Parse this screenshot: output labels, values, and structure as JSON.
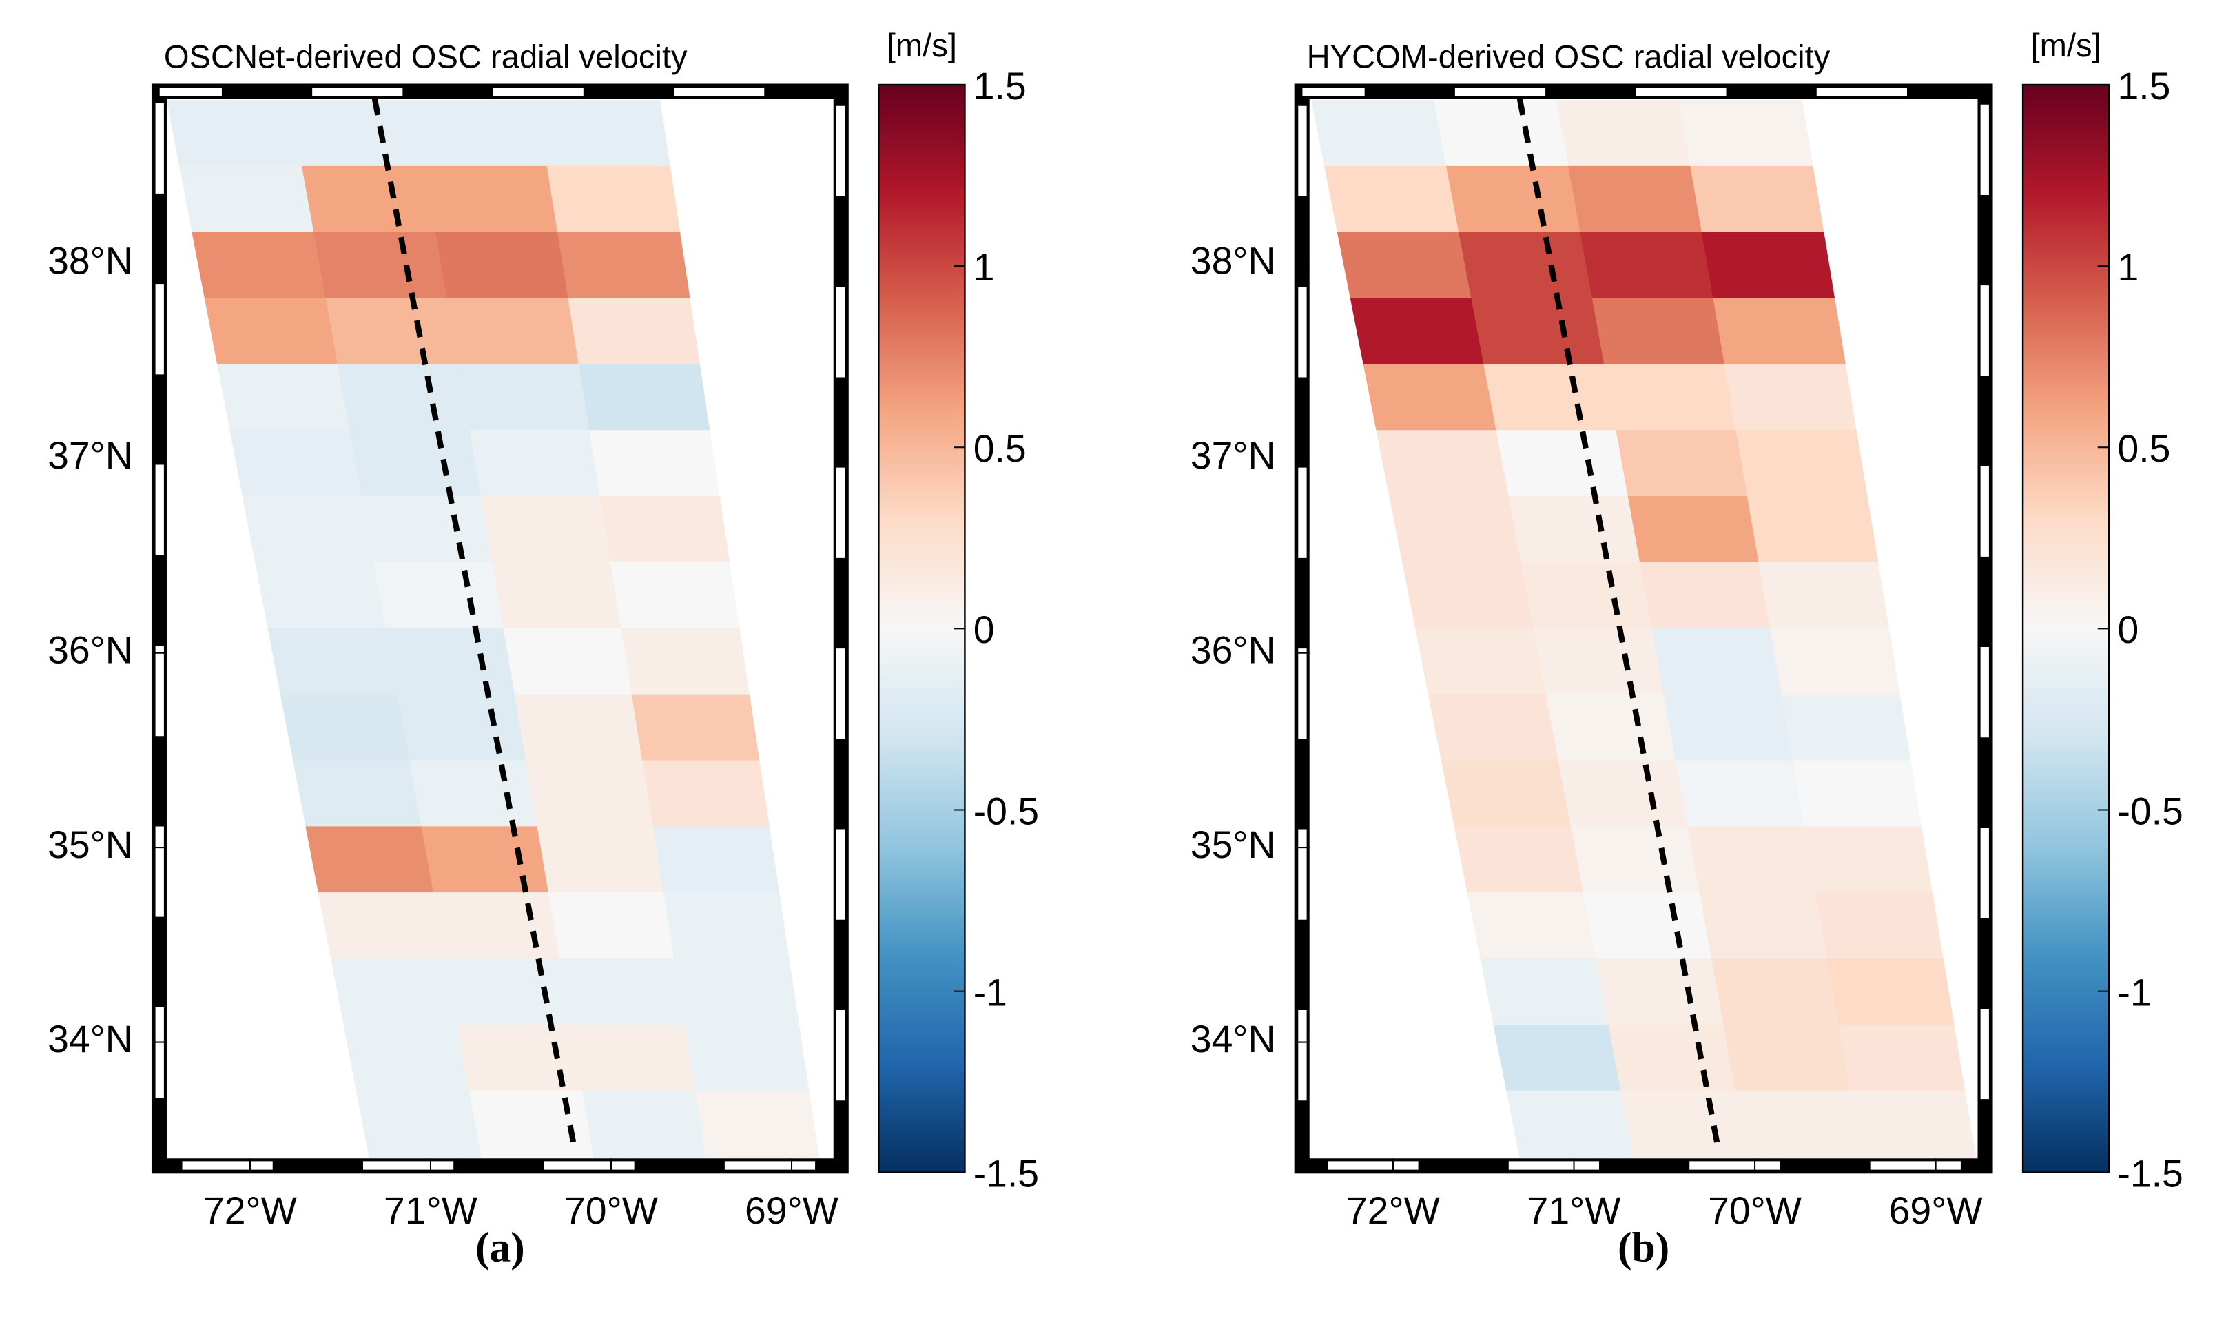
{
  "chart_data": [
    {
      "type": "heatmap",
      "title": "OSCNet-derived OSC radial velocity",
      "caption": "(a)",
      "colorbar_label": "[m/s]",
      "colormap": "RdBu_r",
      "clim": [
        -1.5,
        1.5
      ],
      "cticks": [
        1.5,
        1,
        0.5,
        0,
        -0.5,
        -1,
        -1.5
      ],
      "xlim": [
        -72.54,
        -68.69
      ],
      "ylim": [
        33.33,
        38.92
      ],
      "xticks": [
        {
          "value": -72,
          "label": "72°W"
        },
        {
          "value": -71,
          "label": "71°W"
        },
        {
          "value": -70,
          "label": "70°W"
        },
        {
          "value": -69,
          "label": "69°W"
        }
      ],
      "yticks": [
        {
          "value": 38,
          "label": "38°N"
        },
        {
          "value": 37,
          "label": "37°N"
        },
        {
          "value": 36,
          "label": "36°N"
        },
        {
          "value": 35,
          "label": "35°N"
        },
        {
          "value": 34,
          "label": "34°N"
        }
      ],
      "swath": {
        "top_left": [
          -72.46,
          38.84
        ],
        "top_right": [
          -69.73,
          38.84
        ],
        "bottom_left": [
          -71.34,
          33.41
        ],
        "bottom_right": [
          -68.85,
          33.41
        ]
      },
      "track": [
        [
          -71.31,
          38.85
        ],
        [
          -70.2,
          33.44
        ]
      ],
      "values": [
        [
          -0.15,
          -0.15,
          -0.15,
          -0.15
        ],
        [
          -0.1,
          0.6,
          0.6,
          0.3
        ],
        [
          0.7,
          0.75,
          0.8,
          0.7
        ],
        [
          0.6,
          0.5,
          0.5,
          0.2
        ],
        [
          -0.1,
          -0.2,
          -0.2,
          -0.3
        ],
        [
          -0.15,
          -0.2,
          -0.1,
          0
        ],
        [
          -0.1,
          -0.1,
          0.1,
          0.15
        ],
        [
          -0.1,
          -0.05,
          0.1,
          0
        ],
        [
          -0.2,
          -0.2,
          0,
          0.1
        ],
        [
          -0.25,
          -0.2,
          0.1,
          0.4
        ],
        [
          -0.2,
          -0.1,
          0.1,
          0.2
        ],
        [
          0.7,
          0.6,
          0.1,
          -0.15
        ],
        [
          0.1,
          0.1,
          0,
          -0.1
        ],
        [
          -0.1,
          -0.1,
          -0.1,
          -0.1
        ],
        [
          -0.1,
          0.1,
          0.1,
          -0.1
        ],
        [
          -0.1,
          0,
          -0.1,
          0.05
        ]
      ]
    },
    {
      "type": "heatmap",
      "title": "HYCOM-derived OSC radial velocity",
      "caption": "(b)",
      "colorbar_label": "[m/s]",
      "colormap": "RdBu_r",
      "clim": [
        -1.5,
        1.5
      ],
      "cticks": [
        1.5,
        1,
        0.5,
        0,
        -0.5,
        -1,
        -1.5
      ],
      "xlim": [
        -72.54,
        -68.69
      ],
      "ylim": [
        33.33,
        38.92
      ],
      "xticks": [
        {
          "value": -72,
          "label": "72°W"
        },
        {
          "value": -71,
          "label": "71°W"
        },
        {
          "value": -70,
          "label": "70°W"
        },
        {
          "value": -69,
          "label": "69°W"
        }
      ],
      "yticks": [
        {
          "value": 38,
          "label": "38°N"
        },
        {
          "value": 37,
          "label": "37°N"
        },
        {
          "value": 36,
          "label": "36°N"
        },
        {
          "value": 35,
          "label": "35°N"
        },
        {
          "value": 34,
          "label": "34°N"
        }
      ],
      "swath": {
        "top_left": [
          -72.45,
          38.84
        ],
        "top_right": [
          -69.74,
          38.84
        ],
        "bottom_left": [
          -71.3,
          33.41
        ],
        "bottom_right": [
          -68.78,
          33.41
        ]
      },
      "track": [
        [
          -71.3,
          38.85
        ],
        [
          -70.2,
          33.44
        ]
      ],
      "values": [
        [
          -0.1,
          0,
          0.1,
          0.05
        ],
        [
          0.3,
          0.6,
          0.7,
          0.4
        ],
        [
          0.8,
          1.0,
          1.1,
          1.2
        ],
        [
          1.2,
          1.0,
          0.8,
          0.6
        ],
        [
          0.6,
          0.3,
          0.3,
          0.2
        ],
        [
          0.2,
          0,
          0.4,
          0.3
        ],
        [
          0.2,
          0.1,
          0.6,
          0.3
        ],
        [
          0.2,
          0.15,
          0.2,
          0.1
        ],
        [
          0.15,
          0.1,
          -0.15,
          0.05
        ],
        [
          0.2,
          0.05,
          -0.15,
          -0.1
        ],
        [
          0.25,
          0.1,
          -0.05,
          0
        ],
        [
          0.2,
          0.05,
          0.15,
          0.15
        ],
        [
          0.05,
          0,
          0.15,
          0.2
        ],
        [
          -0.1,
          0.1,
          0.25,
          0.3
        ],
        [
          -0.3,
          0.15,
          0.25,
          0.2
        ],
        [
          -0.1,
          0.1,
          0.1,
          0.1
        ]
      ]
    }
  ]
}
